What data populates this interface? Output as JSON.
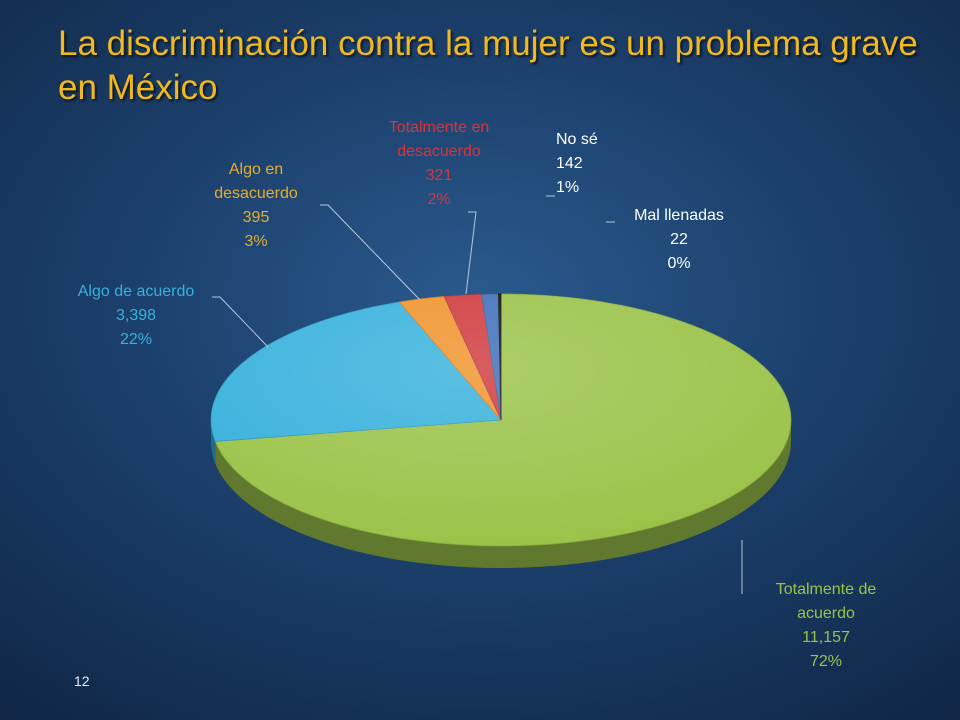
{
  "slide": {
    "title": "La discriminación contra la mujer es un problema grave en México",
    "title_color": "#f2b91c",
    "page_number": "12"
  },
  "chart_data": {
    "type": "pie",
    "title": "",
    "start_angle_deg": 0,
    "series": [
      {
        "name": "Totalmente de acuerdo",
        "label_lines": [
          "Totalmente de",
          "acuerdo"
        ],
        "value": 11157,
        "value_label": "11,157",
        "percent": "72%",
        "color": "#9bc34a",
        "label_color": "#9bc34a"
      },
      {
        "name": "Algo de acuerdo",
        "label_lines": [
          "Algo de acuerdo"
        ],
        "value": 3398,
        "value_label": "3,398",
        "percent": "22%",
        "color": "#37b1dc",
        "label_color": "#37b1dc"
      },
      {
        "name": "Algo en desacuerdo",
        "label_lines": [
          "Algo en",
          "desacuerdo"
        ],
        "value": 395,
        "value_label": "395",
        "percent": "3%",
        "color": "#f0932b",
        "label_color": "#e5ae2a"
      },
      {
        "name": "Totalmente en desacuerdo",
        "label_lines": [
          "Totalmente en",
          "desacuerdo"
        ],
        "value": 321,
        "value_label": "321",
        "percent": "2%",
        "color": "#cf3a3d",
        "label_color": "#d8343a"
      },
      {
        "name": "No sé",
        "label_lines": [
          "No sé"
        ],
        "value": 142,
        "value_label": "142",
        "percent": "1%",
        "color": "#3f6fb9",
        "label_color": "#ffffff"
      },
      {
        "name": "Mal llenadas",
        "label_lines": [
          "Mal llenadas"
        ],
        "value": 22,
        "value_label": "22",
        "percent": "0%",
        "color": "#111111",
        "label_color": "#ffffff"
      }
    ]
  }
}
